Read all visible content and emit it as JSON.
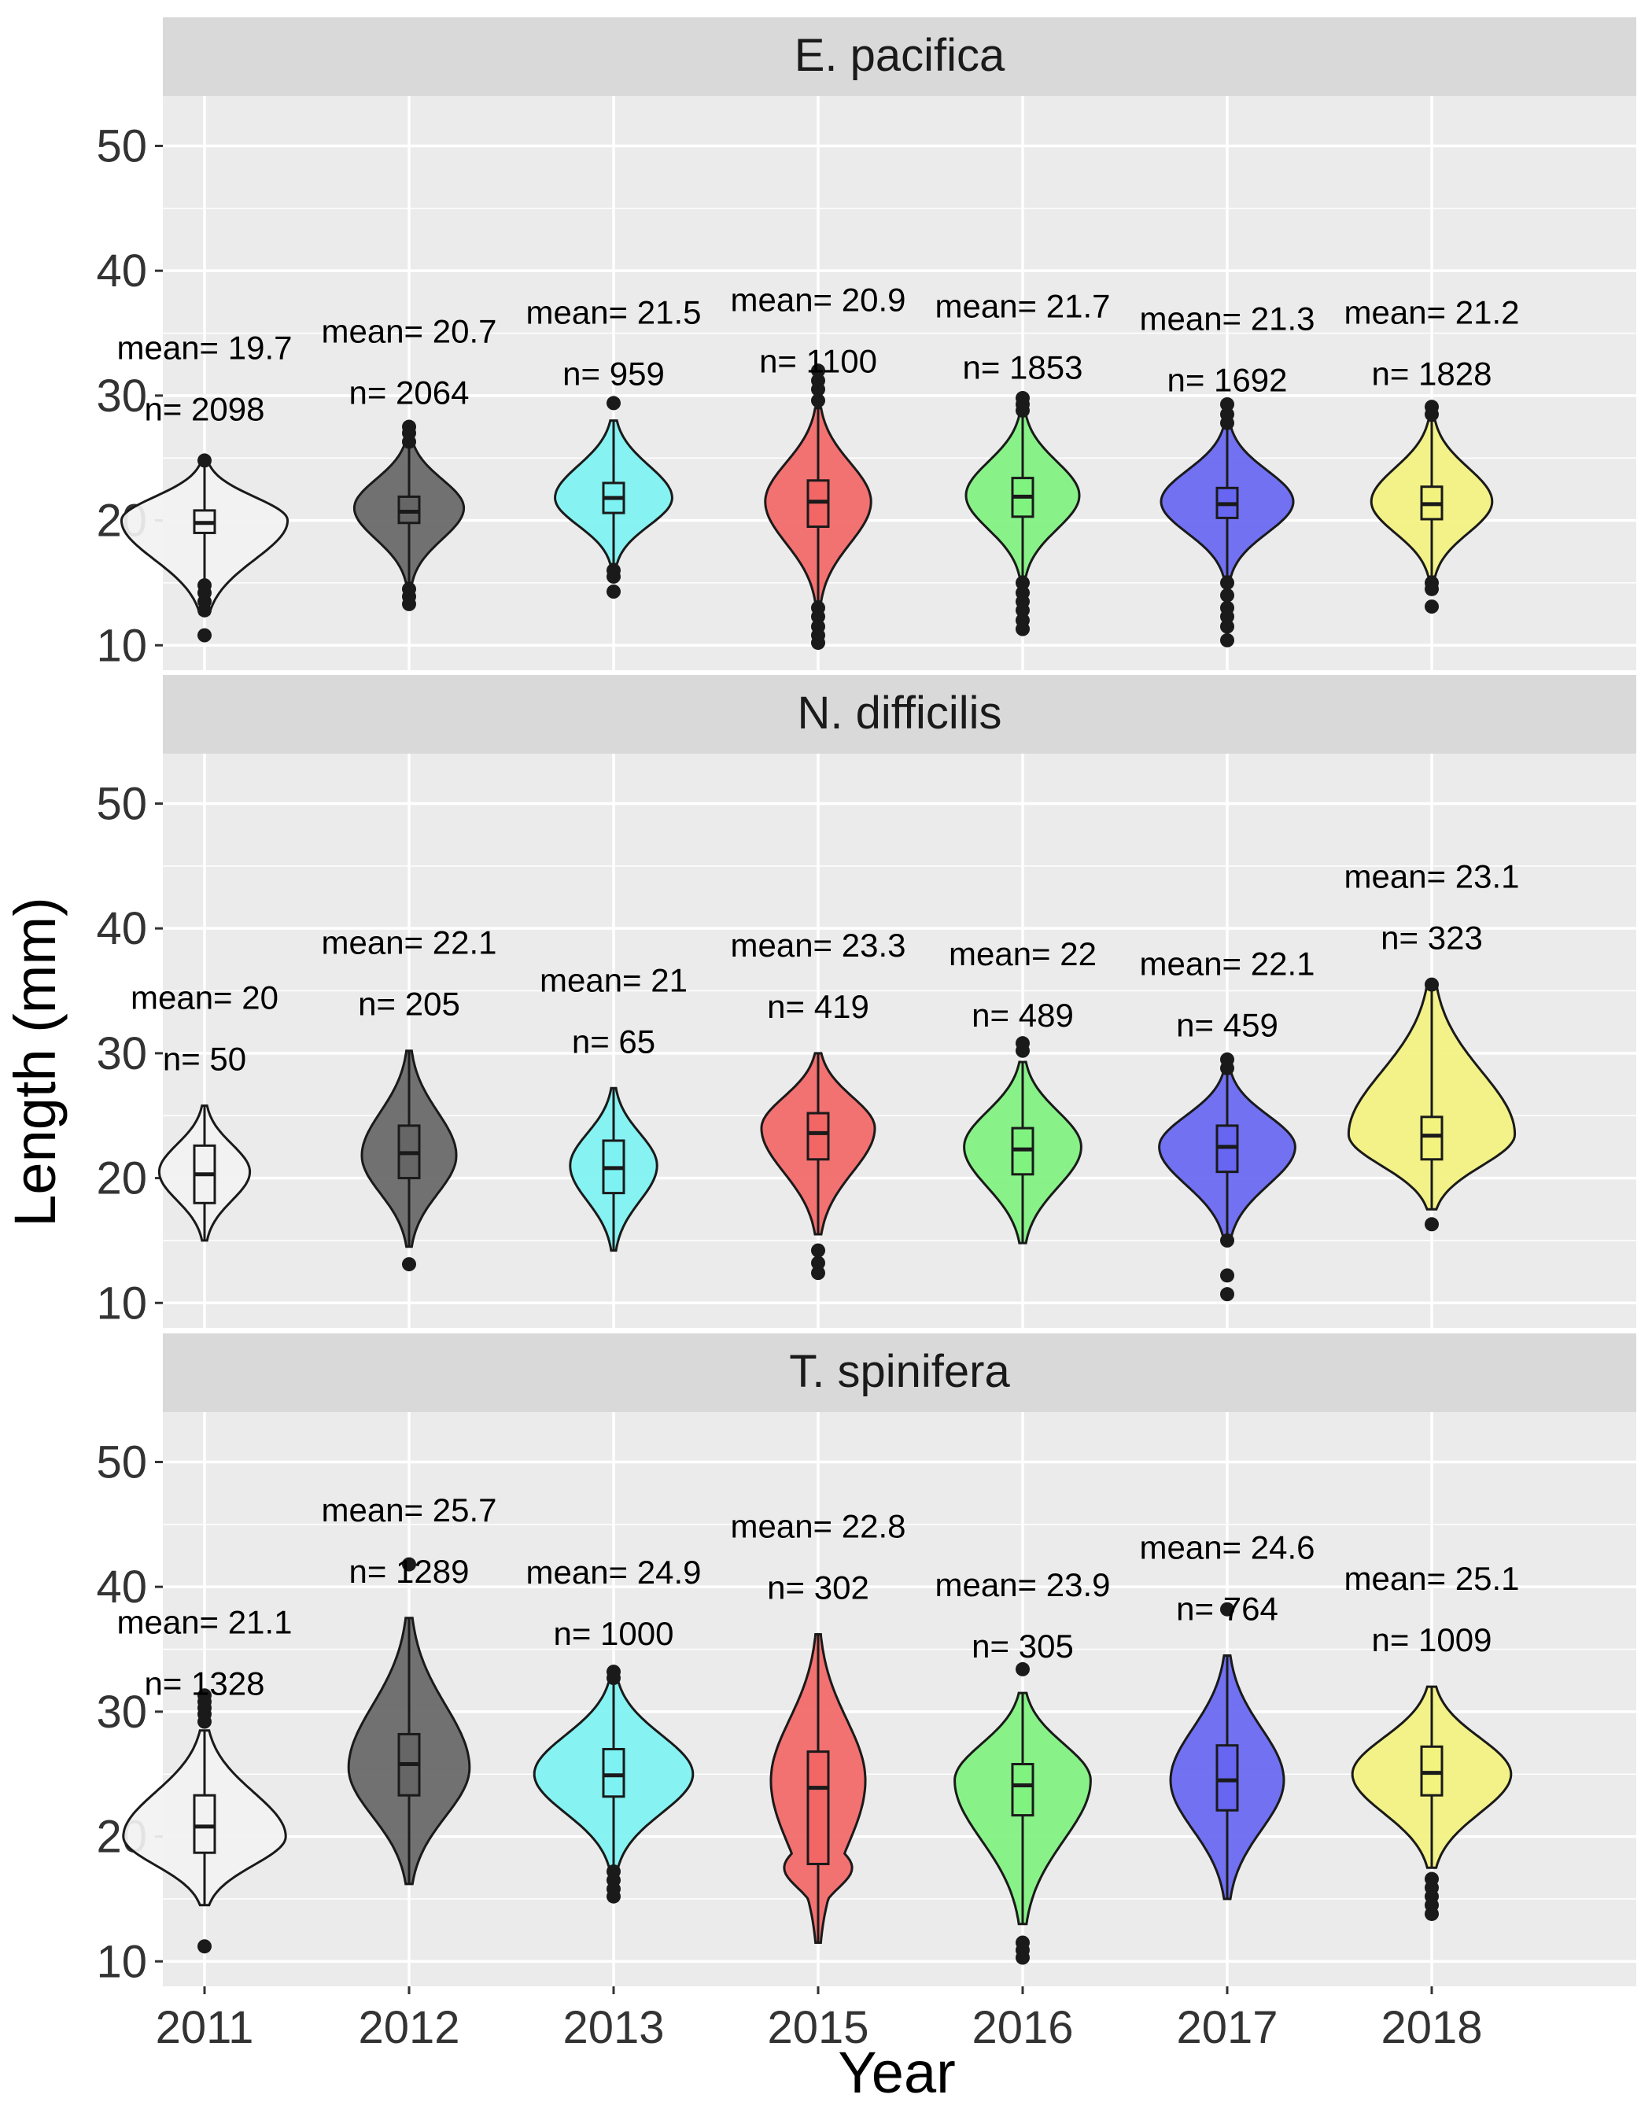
{
  "chart_data": {
    "type": "violin",
    "xlabel": "Year",
    "ylabel": "Length (mm)",
    "categories": [
      "2011",
      "2012",
      "2013",
      "2015",
      "2016",
      "2017",
      "2018"
    ],
    "ylim": [
      8,
      54
    ],
    "yticks": [
      10,
      20,
      30,
      40,
      50
    ],
    "grid": true,
    "legend": "none",
    "colors": {
      "2011": "#f2f2f2",
      "2012": "#666666",
      "2013": "#7ef2f2",
      "2015": "#f26666",
      "2016": "#7ff27f",
      "2017": "#6666f2",
      "2018": "#f2f27f"
    },
    "panels": [
      {
        "title": "E. pacifica",
        "groups": [
          {
            "year": "2011",
            "mean_label": "mean= 19.7",
            "n_label": "n= 2098",
            "min": 12.5,
            "max": 24.5,
            "q1": 19,
            "median": 19.8,
            "q3": 20.8,
            "mode": 20,
            "spread": 0.88,
            "outliers": [
              10.8,
              12.8,
              13.5,
              14.2,
              14.8,
              24.8
            ]
          },
          {
            "year": "2012",
            "mean_label": "mean= 20.7",
            "n_label": "n= 2064",
            "min": 15,
            "max": 26.5,
            "q1": 19.8,
            "median": 20.7,
            "q3": 21.9,
            "mode": 21,
            "spread": 0.58,
            "outliers": [
              13.3,
              13.9,
              14.5,
              26.3,
              27.0,
              27.5
            ]
          },
          {
            "year": "2013",
            "mean_label": "mean= 21.5",
            "n_label": "n= 959",
            "min": 16.5,
            "max": 28,
            "q1": 20.6,
            "median": 21.8,
            "q3": 23.0,
            "mode": 21.8,
            "spread": 0.62,
            "outliers": [
              14.3,
              15.5,
              16.0,
              29.4
            ]
          },
          {
            "year": "2015",
            "mean_label": "mean= 20.9",
            "n_label": "n= 1100",
            "min": 13.5,
            "max": 29,
            "q1": 19.5,
            "median": 21.5,
            "q3": 23.2,
            "mode": 21.5,
            "spread": 0.56,
            "outliers": [
              10.2,
              10.8,
              11.5,
              12.3,
              13.0,
              29.6,
              30.5,
              31.2,
              32.0
            ]
          },
          {
            "year": "2016",
            "mean_label": "mean= 21.7",
            "n_label": "n= 1853",
            "min": 15.5,
            "max": 28.5,
            "q1": 20.3,
            "median": 21.9,
            "q3": 23.4,
            "mode": 22,
            "spread": 0.6,
            "outliers": [
              11.3,
              12.0,
              12.8,
              13.5,
              14.2,
              15.0,
              28.8,
              29.3,
              29.8
            ]
          },
          {
            "year": "2017",
            "mean_label": "mean= 21.3",
            "n_label": "n= 1692",
            "min": 15.5,
            "max": 27.5,
            "q1": 20.2,
            "median": 21.3,
            "q3": 22.6,
            "mode": 21.5,
            "spread": 0.7,
            "outliers": [
              10.4,
              11.5,
              12.3,
              13.0,
              14.0,
              15.0,
              27.8,
              28.5,
              29.3
            ]
          },
          {
            "year": "2018",
            "mean_label": "mean= 21.2",
            "n_label": "n= 1828",
            "min": 15.5,
            "max": 28,
            "q1": 20.1,
            "median": 21.3,
            "q3": 22.7,
            "mode": 21.5,
            "spread": 0.64,
            "outliers": [
              13.1,
              14.5,
              15.0,
              28.5,
              29.1
            ]
          }
        ]
      },
      {
        "title": "N. difficilis",
        "groups": [
          {
            "year": "2011",
            "mean_label": "mean= 20",
            "n_label": "n= 50",
            "min": 15,
            "max": 25.8,
            "q1": 18.0,
            "median": 20.3,
            "q3": 22.6,
            "mode": 20.5,
            "spread": 0.48,
            "outliers": []
          },
          {
            "year": "2012",
            "mean_label": "mean= 22.1",
            "n_label": "n= 205",
            "min": 14.5,
            "max": 30.2,
            "q1": 20.0,
            "median": 22.0,
            "q3": 24.2,
            "mode": 21.8,
            "spread": 0.5,
            "outliers": [
              13.1
            ]
          },
          {
            "year": "2013",
            "mean_label": "mean= 21",
            "n_label": "n= 65",
            "min": 14.2,
            "max": 27.2,
            "q1": 18.8,
            "median": 20.8,
            "q3": 23.0,
            "mode": 21,
            "spread": 0.46,
            "outliers": []
          },
          {
            "year": "2015",
            "mean_label": "mean= 23.3",
            "n_label": "n= 419",
            "min": 15.5,
            "max": 30.0,
            "q1": 21.5,
            "median": 23.6,
            "q3": 25.2,
            "mode": 24,
            "spread": 0.6,
            "outliers": [
              12.4,
              13.2,
              14.2
            ]
          },
          {
            "year": "2016",
            "mean_label": "mean= 22",
            "n_label": "n= 489",
            "min": 14.8,
            "max": 29.3,
            "q1": 20.3,
            "median": 22.3,
            "q3": 24.0,
            "mode": 22.5,
            "spread": 0.62,
            "outliers": [
              30.2,
              30.8
            ]
          },
          {
            "year": "2017",
            "mean_label": "mean= 22.1",
            "n_label": "n= 459",
            "min": 15.2,
            "max": 28.5,
            "q1": 20.5,
            "median": 22.5,
            "q3": 24.2,
            "mode": 22.5,
            "spread": 0.72,
            "outliers": [
              10.7,
              12.2,
              15.0,
              28.8,
              29.5
            ]
          },
          {
            "year": "2018",
            "mean_label": "mean= 23.1",
            "n_label": "n= 323",
            "min": 17.5,
            "max": 35.5,
            "q1": 21.5,
            "median": 23.4,
            "q3": 24.9,
            "mode": 23.5,
            "spread": 0.88,
            "outliers": [
              16.3,
              35.5
            ]
          }
        ]
      },
      {
        "title": "T. spinifera",
        "groups": [
          {
            "year": "2011",
            "mean_label": "mean= 21.1",
            "n_label": "n= 1328",
            "min": 14.5,
            "max": 28.5,
            "q1": 18.7,
            "median": 20.8,
            "q3": 23.3,
            "mode": 20,
            "spread": 0.86,
            "outliers": [
              11.2,
              29.2,
              29.8,
              30.3,
              30.8,
              31.3
            ]
          },
          {
            "year": "2012",
            "mean_label": "mean= 25.7",
            "n_label": "n= 1289",
            "min": 16.2,
            "max": 37.5,
            "q1": 23.3,
            "median": 25.8,
            "q3": 28.2,
            "mode": 25.5,
            "spread": 0.64,
            "outliers": [
              41.8
            ]
          },
          {
            "year": "2013",
            "mean_label": "mean= 24.9",
            "n_label": "n= 1000",
            "min": 17.5,
            "max": 32.5,
            "q1": 23.2,
            "median": 24.9,
            "q3": 27.0,
            "mode": 25,
            "spread": 0.84,
            "outliers": [
              15.2,
              15.8,
              16.5,
              17.2,
              32.7,
              33.2
            ]
          },
          {
            "year": "2015",
            "mean_label": "mean= 22.8",
            "n_label": "n= 302",
            "min": 11.5,
            "max": 36.2,
            "q1": 17.8,
            "median": 23.9,
            "q3": 26.8,
            "mode": 24.5,
            "spread": 0.5,
            "mode2": 17.5,
            "outliers": []
          },
          {
            "year": "2016",
            "mean_label": "mean= 23.9",
            "n_label": "n= 305",
            "min": 13.0,
            "max": 31.5,
            "q1": 21.7,
            "median": 24.1,
            "q3": 25.8,
            "mode": 24.5,
            "spread": 0.72,
            "outliers": [
              10.3,
              10.9,
              11.5,
              33.4
            ]
          },
          {
            "year": "2017",
            "mean_label": "mean= 24.6",
            "n_label": "n= 764",
            "min": 15.0,
            "max": 34.5,
            "q1": 22.1,
            "median": 24.5,
            "q3": 27.3,
            "mode": 24.5,
            "spread": 0.6,
            "outliers": [
              38.2
            ]
          },
          {
            "year": "2018",
            "mean_label": "mean= 25.1",
            "n_label": "n= 1009",
            "min": 17.5,
            "max": 32.0,
            "q1": 23.3,
            "median": 25.1,
            "q3": 27.2,
            "mode": 25,
            "spread": 0.84,
            "outliers": [
              13.8,
              14.5,
              15.2,
              15.9,
              16.6
            ]
          }
        ]
      }
    ]
  }
}
